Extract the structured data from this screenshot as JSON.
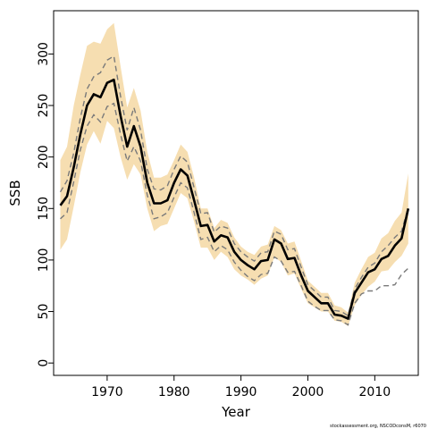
{
  "chart_data": {
    "type": "line",
    "xlabel": "Year",
    "ylabel": "SSB",
    "xlim": [
      1962,
      2016.5
    ],
    "ylim": [
      -12,
      342
    ],
    "xticks": [
      1970,
      1980,
      1990,
      2000,
      2010
    ],
    "yticks": [
      0,
      50,
      100,
      150,
      200,
      250,
      300
    ],
    "x": [
      1963,
      1964,
      1965,
      1966,
      1967,
      1968,
      1969,
      1970,
      1971,
      1972,
      1973,
      1974,
      1975,
      1976,
      1977,
      1978,
      1979,
      1980,
      1981,
      1982,
      1983,
      1984,
      1985,
      1986,
      1987,
      1988,
      1989,
      1990,
      1991,
      1992,
      1993,
      1994,
      1995,
      1996,
      1997,
      1998,
      1999,
      2000,
      2001,
      2002,
      2003,
      2004,
      2005,
      2006,
      2007,
      2008,
      2009,
      2010,
      2011,
      2012,
      2013,
      2014,
      2015
    ],
    "series": [
      {
        "values": [
          153,
          162,
          190,
          222,
          250,
          261,
          258,
          272,
          275,
          240,
          210,
          230,
          210,
          175,
          155,
          155,
          158,
          175,
          188,
          182,
          158,
          133,
          134,
          118,
          124,
          122,
          108,
          100,
          95,
          91,
          99,
          100,
          120,
          116,
          101,
          102,
          85,
          70,
          64,
          58,
          58,
          47,
          46,
          43,
          68,
          78,
          88,
          91,
          101,
          104,
          114,
          121,
          150
        ]
      },
      {
        "values": [
          110,
          120,
          152,
          185,
          212,
          225,
          213,
          235,
          228,
          200,
          178,
          193,
          183,
          150,
          128,
          133,
          135,
          150,
          165,
          160,
          137,
          112,
          112,
          100,
          108,
          103,
          91,
          85,
          81,
          76,
          82,
          85,
          103,
          98,
          85,
          87,
          72,
          58,
          54,
          50,
          50,
          41,
          40,
          36,
          56,
          66,
          74,
          79,
          89,
          90,
          98,
          104,
          116
        ]
      },
      {
        "values": [
          197,
          210,
          250,
          280,
          308,
          312,
          310,
          324,
          330,
          288,
          248,
          267,
          245,
          205,
          180,
          180,
          183,
          197,
          212,
          205,
          180,
          150,
          150,
          131,
          139,
          136,
          122,
          113,
          108,
          105,
          113,
          115,
          133,
          129,
          116,
          118,
          99,
          80,
          74,
          68,
          68,
          56,
          54,
          49,
          78,
          91,
          103,
          107,
          121,
          126,
          138,
          146,
          184
        ]
      },
      {
        "values": [
          140,
          146,
          176,
          207,
          230,
          241,
          234,
          249,
          252,
          222,
          196,
          210,
          196,
          163,
          140,
          142,
          146,
          161,
          175,
          170,
          146,
          120,
          122,
          108,
          114,
          110,
          98,
          90,
          84,
          80,
          86,
          87,
          103,
          99,
          88,
          89,
          75,
          60,
          55,
          51,
          51,
          42,
          41,
          37,
          58,
          67,
          70,
          70,
          75,
          75,
          76,
          86,
          92
        ]
      },
      {
        "values": [
          166,
          177,
          204,
          238,
          266,
          278,
          282,
          294,
          298,
          259,
          226,
          248,
          226,
          188,
          169,
          168,
          172,
          188,
          201,
          195,
          170,
          145,
          146,
          127,
          133,
          131,
          116,
          108,
          103,
          99,
          107,
          108,
          128,
          125,
          110,
          111,
          93,
          76,
          70,
          64,
          64,
          51,
          50,
          46,
          72,
          83,
          93,
          97,
          108,
          114,
          122,
          128,
          151
        ]
      }
    ]
  },
  "credit": "stockassessment.org, NSCODconsM, r6070",
  "colors": {
    "band": "#f6deb1",
    "estimate": "#000000",
    "alt": "#7a7a7a",
    "frame": "#000000"
  }
}
